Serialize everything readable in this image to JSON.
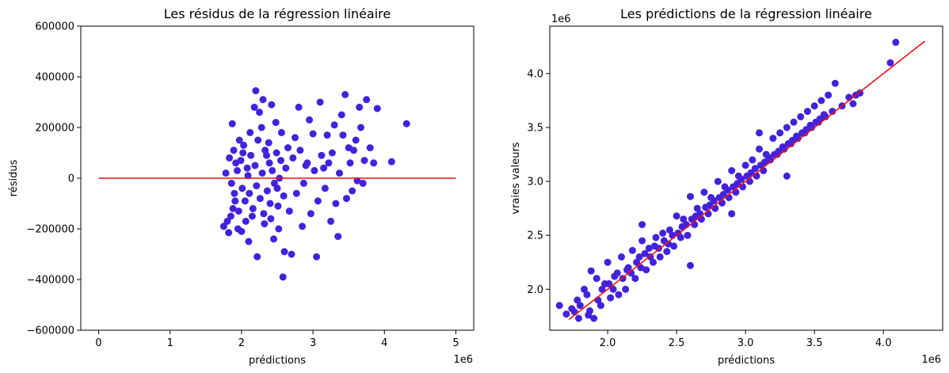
{
  "chart_data": [
    {
      "type": "scatter",
      "title": "Les résidus de la régression linéaire",
      "xlabel": "prédictions",
      "ylabel": "résidus",
      "x_offset_label": "1e6",
      "xlim": [
        -250000,
        5250000
      ],
      "ylim": [
        -600000,
        600000
      ],
      "xticks": [
        0,
        1000000,
        2000000,
        3000000,
        4000000,
        5000000
      ],
      "xtick_labels": [
        "0",
        "1",
        "2",
        "3",
        "4",
        "5"
      ],
      "yticks": [
        -600000,
        -400000,
        -200000,
        0,
        200000,
        400000,
        600000
      ],
      "ytick_labels": [
        "−600000",
        "−400000",
        "−200000",
        "0",
        "200000",
        "400000",
        "600000"
      ],
      "point_color": "#4422dd",
      "line_color": "#ee1111",
      "reference_line": {
        "x": [
          0,
          5000000
        ],
        "y": [
          0,
          0
        ]
      },
      "points": [
        [
          1750000,
          -190000
        ],
        [
          1800000,
          -170000
        ],
        [
          1820000,
          -215000
        ],
        [
          1850000,
          -150000
        ],
        [
          1870000,
          215000
        ],
        [
          1880000,
          -120000
        ],
        [
          1900000,
          -60000
        ],
        [
          1920000,
          60000
        ],
        [
          1950000,
          -200000
        ],
        [
          1970000,
          150000
        ],
        [
          2000000,
          -210000
        ],
        [
          2020000,
          100000
        ],
        [
          2050000,
          -90000
        ],
        [
          2080000,
          40000
        ],
        [
          2100000,
          -250000
        ],
        [
          2120000,
          180000
        ],
        [
          2150000,
          -150000
        ],
        [
          2180000,
          280000
        ],
        [
          2200000,
          345000
        ],
        [
          2220000,
          -310000
        ],
        [
          2250000,
          260000
        ],
        [
          2280000,
          200000
        ],
        [
          2300000,
          310000
        ],
        [
          2320000,
          -180000
        ],
        [
          2350000,
          90000
        ],
        [
          2380000,
          140000
        ],
        [
          2400000,
          -100000
        ],
        [
          2420000,
          290000
        ],
        [
          2450000,
          -240000
        ],
        [
          2480000,
          220000
        ],
        [
          2500000,
          -40000
        ],
        [
          2520000,
          -200000
        ],
        [
          2550000,
          70000
        ],
        [
          2580000,
          -390000
        ],
        [
          2600000,
          -290000
        ],
        [
          2650000,
          120000
        ],
        [
          2700000,
          -300000
        ],
        [
          2750000,
          160000
        ],
        [
          2800000,
          280000
        ],
        [
          2850000,
          -190000
        ],
        [
          2900000,
          50000
        ],
        [
          2950000,
          230000
        ],
        [
          3000000,
          175000
        ],
        [
          3050000,
          -310000
        ],
        [
          3100000,
          300000
        ],
        [
          3150000,
          40000
        ],
        [
          3200000,
          170000
        ],
        [
          3250000,
          -170000
        ],
        [
          3300000,
          210000
        ],
        [
          3350000,
          -230000
        ],
        [
          3400000,
          250000
        ],
        [
          3450000,
          330000
        ],
        [
          3500000,
          120000
        ],
        [
          3550000,
          -50000
        ],
        [
          3600000,
          150000
        ],
        [
          3650000,
          280000
        ],
        [
          3700000,
          -20000
        ],
        [
          3750000,
          310000
        ],
        [
          3800000,
          120000
        ],
        [
          3850000,
          60000
        ],
        [
          3900000,
          275000
        ],
        [
          4100000,
          65000
        ],
        [
          4310000,
          215000
        ],
        [
          1780000,
          20000
        ],
        [
          1830000,
          80000
        ],
        [
          1860000,
          -20000
        ],
        [
          1890000,
          110000
        ],
        [
          1910000,
          -90000
        ],
        [
          1940000,
          30000
        ],
        [
          1960000,
          -130000
        ],
        [
          1990000,
          70000
        ],
        [
          2010000,
          -40000
        ],
        [
          2030000,
          130000
        ],
        [
          2060000,
          -170000
        ],
        [
          2090000,
          10000
        ],
        [
          2110000,
          -60000
        ],
        [
          2130000,
          90000
        ],
        [
          2160000,
          -120000
        ],
        [
          2190000,
          50000
        ],
        [
          2210000,
          -30000
        ],
        [
          2230000,
          150000
        ],
        [
          2260000,
          -80000
        ],
        [
          2290000,
          20000
        ],
        [
          2310000,
          -140000
        ],
        [
          2330000,
          110000
        ],
        [
          2360000,
          -50000
        ],
        [
          2390000,
          60000
        ],
        [
          2410000,
          -160000
        ],
        [
          2430000,
          30000
        ],
        [
          2460000,
          -20000
        ],
        [
          2490000,
          100000
        ],
        [
          2510000,
          -110000
        ],
        [
          2530000,
          0
        ],
        [
          2560000,
          180000
        ],
        [
          2590000,
          -70000
        ],
        [
          2620000,
          40000
        ],
        [
          2670000,
          -130000
        ],
        [
          2720000,
          80000
        ],
        [
          2770000,
          -60000
        ],
        [
          2820000,
          110000
        ],
        [
          2870000,
          -20000
        ],
        [
          2920000,
          60000
        ],
        [
          2970000,
          -140000
        ],
        [
          3020000,
          30000
        ],
        [
          3070000,
          -90000
        ],
        [
          3120000,
          90000
        ],
        [
          3170000,
          -40000
        ],
        [
          3220000,
          60000
        ],
        [
          3270000,
          100000
        ],
        [
          3320000,
          -100000
        ],
        [
          3370000,
          20000
        ],
        [
          3420000,
          170000
        ],
        [
          3470000,
          -80000
        ],
        [
          3520000,
          60000
        ],
        [
          3570000,
          110000
        ],
        [
          3620000,
          -10000
        ],
        [
          3670000,
          200000
        ],
        [
          3720000,
          70000
        ]
      ]
    },
    {
      "type": "scatter",
      "title": "Les prédictions de la régression linéaire",
      "xlabel": "prédictions",
      "ylabel": "vraies valeurs",
      "x_offset_label": "1e6",
      "y_offset_label": "1e6",
      "xlim": [
        1580000,
        4430000
      ],
      "ylim": [
        1620000,
        4440000
      ],
      "xticks": [
        2000000,
        2500000,
        3000000,
        3500000,
        4000000
      ],
      "xtick_labels": [
        "2.0",
        "2.5",
        "3.0",
        "3.5",
        "4.0"
      ],
      "yticks": [
        2000000,
        2500000,
        3000000,
        3500000,
        4000000
      ],
      "ytick_labels": [
        "2.0",
        "2.5",
        "3.0",
        "3.5",
        "4.0"
      ],
      "point_color": "#4422dd",
      "line_color": "#ee1111",
      "reference_line": {
        "x": [
          1720000,
          4300000
        ],
        "y": [
          1720000,
          4300000
        ]
      },
      "points": [
        [
          1650000,
          1850000
        ],
        [
          1700000,
          1770000
        ],
        [
          1740000,
          1820000
        ],
        [
          1780000,
          1900000
        ],
        [
          1800000,
          1850000
        ],
        [
          1830000,
          2000000
        ],
        [
          1860000,
          1760000
        ],
        [
          1880000,
          2170000
        ],
        [
          1900000,
          1730000
        ],
        [
          1920000,
          2100000
        ],
        [
          1950000,
          1850000
        ],
        [
          1980000,
          2050000
        ],
        [
          2000000,
          2250000
        ],
        [
          2020000,
          1920000
        ],
        [
          2050000,
          2120000
        ],
        [
          2080000,
          1950000
        ],
        [
          2100000,
          2300000
        ],
        [
          2130000,
          2000000
        ],
        [
          2150000,
          2200000
        ],
        [
          2180000,
          2360000
        ],
        [
          2200000,
          2100000
        ],
        [
          2230000,
          2300000
        ],
        [
          2250000,
          2450000
        ],
        [
          2280000,
          2180000
        ],
        [
          2300000,
          2380000
        ],
        [
          2330000,
          2250000
        ],
        [
          2350000,
          2480000
        ],
        [
          2380000,
          2300000
        ],
        [
          2400000,
          2520000
        ],
        [
          2430000,
          2350000
        ],
        [
          2450000,
          2550000
        ],
        [
          2480000,
          2400000
        ],
        [
          2500000,
          2680000
        ],
        [
          2530000,
          2480000
        ],
        [
          2550000,
          2650000
        ],
        [
          2580000,
          2500000
        ],
        [
          2600000,
          2860000
        ],
        [
          2630000,
          2600000
        ],
        [
          2650000,
          2750000
        ],
        [
          2680000,
          2650000
        ],
        [
          2700000,
          2900000
        ],
        [
          2730000,
          2700000
        ],
        [
          2750000,
          2850000
        ],
        [
          2780000,
          2750000
        ],
        [
          2800000,
          3000000
        ],
        [
          2830000,
          2800000
        ],
        [
          2850000,
          2950000
        ],
        [
          2880000,
          2850000
        ],
        [
          2900000,
          3100000
        ],
        [
          2930000,
          2900000
        ],
        [
          2950000,
          3050000
        ],
        [
          2980000,
          2950000
        ],
        [
          3000000,
          3150000
        ],
        [
          3030000,
          3000000
        ],
        [
          3050000,
          3200000
        ],
        [
          3080000,
          3050000
        ],
        [
          3100000,
          3300000
        ],
        [
          3130000,
          3100000
        ],
        [
          3150000,
          3250000
        ],
        [
          3180000,
          3200000
        ],
        [
          3200000,
          3400000
        ],
        [
          3230000,
          3250000
        ],
        [
          3250000,
          3450000
        ],
        [
          3280000,
          3300000
        ],
        [
          3300000,
          3500000
        ],
        [
          3330000,
          3350000
        ],
        [
          3350000,
          3550000
        ],
        [
          3380000,
          3400000
        ],
        [
          3400000,
          3600000
        ],
        [
          3430000,
          3450000
        ],
        [
          3450000,
          3650000
        ],
        [
          3480000,
          3500000
        ],
        [
          3500000,
          3700000
        ],
        [
          3530000,
          3550000
        ],
        [
          3550000,
          3750000
        ],
        [
          3580000,
          3600000
        ],
        [
          3600000,
          3800000
        ],
        [
          3630000,
          3650000
        ],
        [
          3650000,
          3910000
        ],
        [
          3700000,
          3700000
        ],
        [
          3750000,
          3780000
        ],
        [
          3780000,
          3720000
        ],
        [
          3800000,
          3800000
        ],
        [
          3830000,
          3820000
        ],
        [
          4050000,
          4100000
        ],
        [
          4090000,
          4290000
        ],
        [
          1760000,
          1790000
        ],
        [
          1790000,
          1730000
        ],
        [
          1850000,
          1950000
        ],
        [
          1870000,
          1800000
        ],
        [
          1930000,
          1900000
        ],
        [
          1960000,
          2000000
        ],
        [
          2010000,
          2050000
        ],
        [
          2040000,
          2000000
        ],
        [
          2070000,
          2150000
        ],
        [
          2110000,
          2100000
        ],
        [
          2140000,
          2180000
        ],
        [
          2170000,
          2150000
        ],
        [
          2210000,
          2250000
        ],
        [
          2240000,
          2200000
        ],
        [
          2270000,
          2330000
        ],
        [
          2310000,
          2300000
        ],
        [
          2340000,
          2400000
        ],
        [
          2370000,
          2380000
        ],
        [
          2410000,
          2450000
        ],
        [
          2440000,
          2420000
        ],
        [
          2470000,
          2500000
        ],
        [
          2510000,
          2520000
        ],
        [
          2540000,
          2580000
        ],
        [
          2570000,
          2600000
        ],
        [
          2610000,
          2650000
        ],
        [
          2640000,
          2680000
        ],
        [
          2670000,
          2700000
        ],
        [
          2710000,
          2760000
        ],
        [
          2740000,
          2780000
        ],
        [
          2770000,
          2820000
        ],
        [
          2810000,
          2850000
        ],
        [
          2840000,
          2880000
        ],
        [
          2870000,
          2920000
        ],
        [
          2910000,
          2950000
        ],
        [
          2940000,
          2980000
        ],
        [
          2970000,
          3020000
        ],
        [
          3010000,
          3050000
        ],
        [
          3040000,
          3080000
        ],
        [
          3070000,
          3120000
        ],
        [
          3110000,
          3150000
        ],
        [
          3140000,
          3180000
        ],
        [
          3170000,
          3220000
        ],
        [
          3210000,
          3250000
        ],
        [
          3240000,
          3280000
        ],
        [
          3270000,
          3320000
        ],
        [
          3310000,
          3350000
        ],
        [
          3340000,
          3380000
        ],
        [
          3370000,
          3420000
        ],
        [
          3410000,
          3450000
        ],
        [
          3440000,
          3480000
        ],
        [
          3470000,
          3520000
        ],
        [
          3510000,
          3550000
        ],
        [
          3540000,
          3580000
        ],
        [
          3570000,
          3620000
        ],
        [
          3100000,
          3450000
        ],
        [
          3300000,
          3050000
        ],
        [
          2600000,
          2220000
        ],
        [
          2250000,
          2600000
        ],
        [
          2900000,
          2700000
        ]
      ]
    }
  ]
}
